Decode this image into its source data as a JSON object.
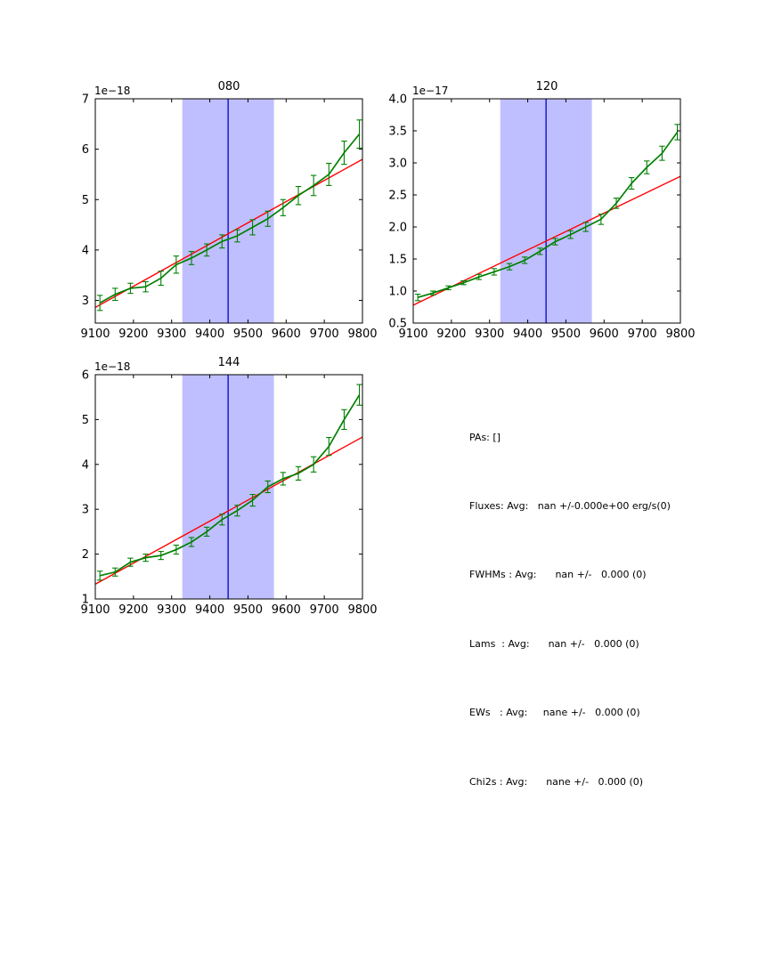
{
  "window": {
    "background": "#ffffff"
  },
  "colors": {
    "data_line": "#008000",
    "fit_line": "#ff0000",
    "marker_line": "#0000cc",
    "band_fill": "#bfbfff",
    "frame": "#000000",
    "text": "#000000"
  },
  "stats_panel": {
    "lines": [
      "PAs: []",
      "Fluxes: Avg:   nan +/-0.000e+00 erg/s(0)",
      "FWHMs : Avg:      nan +/-   0.000 (0)",
      "Lams  : Avg:      nan +/-   0.000 (0)",
      "EWs   : Avg:     nane +/-   0.000 (0)",
      "Chi2s : Avg:      nane +/-   0.000 (0)"
    ]
  },
  "chart_data": [
    {
      "type": "line",
      "title": "080",
      "offset_label": "1e−18",
      "xlabel": "",
      "ylabel": "",
      "xlim": [
        9100,
        9800
      ],
      "ylim": [
        2.55,
        7.0
      ],
      "xticks": [
        9100,
        9200,
        9300,
        9400,
        9500,
        9600,
        9700,
        9800
      ],
      "yticks": [
        3,
        4,
        5,
        6,
        7
      ],
      "ytick_labels": [
        "3",
        "4",
        "5",
        "6",
        "7"
      ],
      "x": [
        9112,
        9152,
        9192,
        9232,
        9272,
        9312,
        9352,
        9392,
        9432,
        9472,
        9512,
        9552,
        9592,
        9632,
        9672,
        9712,
        9752,
        9792
      ],
      "series": [
        {
          "name": "spectrum",
          "style": "errorbar-line",
          "values": [
            2.95,
            3.12,
            3.24,
            3.27,
            3.44,
            3.71,
            3.84,
            4.0,
            4.17,
            4.28,
            4.45,
            4.62,
            4.84,
            5.08,
            5.28,
            5.5,
            5.93,
            6.3
          ],
          "errors": [
            0.15,
            0.12,
            0.1,
            0.1,
            0.14,
            0.17,
            0.13,
            0.12,
            0.13,
            0.12,
            0.15,
            0.15,
            0.16,
            0.18,
            0.2,
            0.22,
            0.23,
            0.28
          ]
        },
        {
          "name": "linear-fit",
          "style": "line",
          "x": [
            9100,
            9800
          ],
          "values": [
            2.86,
            5.8
          ]
        }
      ],
      "highlight_band": {
        "x0": 9328,
        "x1": 9568
      },
      "center_line": {
        "x": 9448
      },
      "grid": false,
      "legend": null
    },
    {
      "type": "line",
      "title": "120",
      "offset_label": "1e−17",
      "xlabel": "",
      "ylabel": "",
      "xlim": [
        9100,
        9800
      ],
      "ylim": [
        0.5,
        4.0
      ],
      "xticks": [
        9100,
        9200,
        9300,
        9400,
        9500,
        9600,
        9700,
        9800
      ],
      "yticks": [
        0.5,
        1.0,
        1.5,
        2.0,
        2.5,
        3.0,
        3.5,
        4.0
      ],
      "ytick_labels": [
        "0.5",
        "1.0",
        "1.5",
        "2.0",
        "2.5",
        "3.0",
        "3.5",
        "4.0"
      ],
      "x": [
        9112,
        9152,
        9192,
        9232,
        9272,
        9312,
        9352,
        9392,
        9432,
        9472,
        9512,
        9552,
        9592,
        9632,
        9672,
        9712,
        9752,
        9792
      ],
      "series": [
        {
          "name": "spectrum",
          "style": "errorbar-line",
          "values": [
            0.9,
            0.97,
            1.05,
            1.13,
            1.22,
            1.3,
            1.38,
            1.48,
            1.62,
            1.77,
            1.88,
            2.0,
            2.12,
            2.37,
            2.68,
            2.93,
            3.15,
            3.48
          ],
          "errors": [
            0.05,
            0.03,
            0.03,
            0.03,
            0.04,
            0.05,
            0.05,
            0.05,
            0.05,
            0.05,
            0.06,
            0.07,
            0.08,
            0.08,
            0.09,
            0.1,
            0.11,
            0.12
          ]
        },
        {
          "name": "linear-fit",
          "style": "line",
          "x": [
            9100,
            9800
          ],
          "values": [
            0.78,
            2.79
          ]
        }
      ],
      "highlight_band": {
        "x0": 9328,
        "x1": 9568
      },
      "center_line": {
        "x": 9448
      },
      "grid": false,
      "legend": null
    },
    {
      "type": "line",
      "title": "144",
      "offset_label": "1e−18",
      "xlabel": "",
      "ylabel": "",
      "xlim": [
        9100,
        9800
      ],
      "ylim": [
        1.0,
        6.0
      ],
      "xticks": [
        9100,
        9200,
        9300,
        9400,
        9500,
        9600,
        9700,
        9800
      ],
      "yticks": [
        1,
        2,
        3,
        4,
        5,
        6
      ],
      "ytick_labels": [
        "1",
        "2",
        "3",
        "4",
        "5",
        "6"
      ],
      "x": [
        9112,
        9152,
        9192,
        9232,
        9272,
        9312,
        9352,
        9392,
        9432,
        9472,
        9512,
        9552,
        9592,
        9632,
        9672,
        9712,
        9752,
        9792
      ],
      "series": [
        {
          "name": "spectrum",
          "style": "errorbar-line",
          "values": [
            1.52,
            1.6,
            1.82,
            1.92,
            1.97,
            2.1,
            2.27,
            2.5,
            2.77,
            2.97,
            3.2,
            3.5,
            3.68,
            3.8,
            4.0,
            4.4,
            5.0,
            5.55
          ],
          "errors": [
            0.1,
            0.09,
            0.09,
            0.08,
            0.09,
            0.1,
            0.1,
            0.1,
            0.12,
            0.12,
            0.13,
            0.13,
            0.14,
            0.15,
            0.17,
            0.2,
            0.22,
            0.23
          ]
        },
        {
          "name": "linear-fit",
          "style": "line",
          "x": [
            9100,
            9800
          ],
          "values": [
            1.33,
            4.61
          ]
        }
      ],
      "highlight_band": {
        "x0": 9328,
        "x1": 9568
      },
      "center_line": {
        "x": 9448
      },
      "grid": false,
      "legend": null
    }
  ]
}
